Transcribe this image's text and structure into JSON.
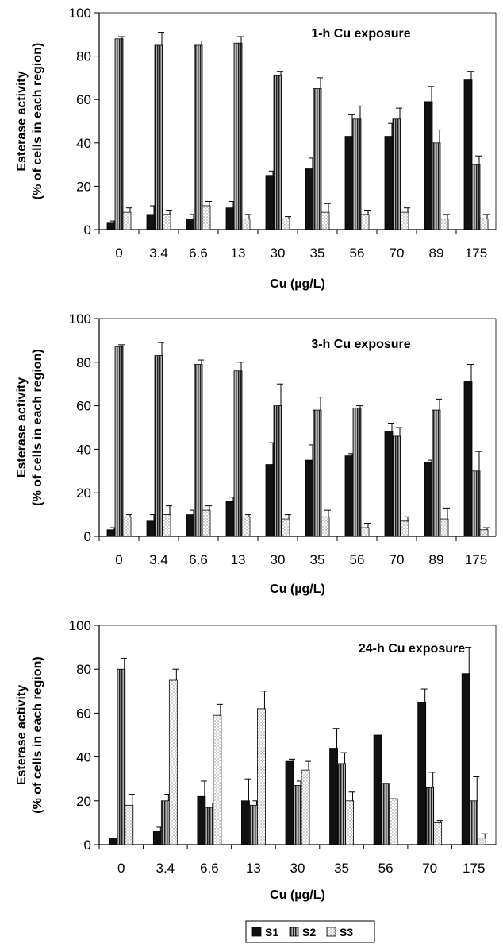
{
  "chart_data": [
    {
      "type": "bar",
      "title": "1-h Cu exposure",
      "xlabel": "Cu (µg/L)",
      "ylabel": [
        "Esterase activity",
        "(% of cells in each region)"
      ],
      "ylim": [
        0,
        100
      ],
      "yticks": [
        0,
        20,
        40,
        60,
        80,
        100
      ],
      "categories": [
        "0",
        "3.4",
        "6.6",
        "13",
        "30",
        "35",
        "56",
        "70",
        "89",
        "175"
      ],
      "series": [
        {
          "name": "S1",
          "values": [
            3,
            7,
            5,
            10,
            25,
            28,
            43,
            43,
            59,
            69
          ],
          "errors": [
            1,
            4,
            2,
            3,
            2,
            5,
            10,
            6,
            7,
            4
          ]
        },
        {
          "name": "S2",
          "values": [
            88,
            85,
            85,
            86,
            71,
            65,
            51,
            51,
            40,
            30
          ],
          "errors": [
            1,
            6,
            2,
            3,
            2,
            5,
            6,
            5,
            6,
            4
          ]
        },
        {
          "name": "S3",
          "values": [
            8,
            7,
            11,
            5,
            5,
            8,
            7,
            8,
            5,
            5
          ],
          "errors": [
            2,
            2,
            2,
            2,
            1,
            4,
            2,
            2,
            2,
            2
          ]
        }
      ]
    },
    {
      "type": "bar",
      "title": "3-h Cu exposure",
      "xlabel": "Cu (µg/L)",
      "ylabel": [
        "Esterase activity",
        "(% of cells in each region)"
      ],
      "ylim": [
        0,
        100
      ],
      "yticks": [
        0,
        20,
        40,
        60,
        80,
        100
      ],
      "categories": [
        "0",
        "3.4",
        "6.6",
        "13",
        "30",
        "35",
        "56",
        "70",
        "89",
        "175"
      ],
      "series": [
        {
          "name": "S1",
          "values": [
            3,
            7,
            10,
            16,
            33,
            35,
            37,
            48,
            34,
            71
          ],
          "errors": [
            1,
            3,
            2,
            2,
            10,
            7,
            1,
            4,
            1,
            8
          ]
        },
        {
          "name": "S2",
          "values": [
            87,
            83,
            79,
            76,
            60,
            58,
            59,
            46,
            58,
            30
          ],
          "errors": [
            1,
            6,
            2,
            4,
            10,
            6,
            1,
            4,
            5,
            9
          ]
        },
        {
          "name": "S3",
          "values": [
            9,
            10,
            12,
            9,
            8,
            9,
            4,
            7,
            8,
            3
          ],
          "errors": [
            1,
            4,
            2,
            1,
            2,
            3,
            2,
            2,
            5,
            1
          ]
        }
      ]
    },
    {
      "type": "bar",
      "title": "24-h Cu exposure",
      "xlabel": "Cu (µg/L)",
      "ylabel": [
        "Esterase activity",
        "(% of cells in each region)"
      ],
      "ylim": [
        0,
        100
      ],
      "yticks": [
        0,
        20,
        40,
        60,
        80,
        100
      ],
      "categories": [
        "0",
        "3.4",
        "6.6",
        "13",
        "30",
        "35",
        "56",
        "70",
        "175"
      ],
      "series": [
        {
          "name": "S1",
          "values": [
            3,
            6,
            22,
            20,
            38,
            44,
            50,
            65,
            78
          ],
          "errors": [
            0,
            2,
            7,
            10,
            1,
            9,
            0,
            6,
            12
          ]
        },
        {
          "name": "S2",
          "values": [
            80,
            20,
            17,
            18,
            27,
            37,
            28,
            26,
            20
          ],
          "errors": [
            5,
            3,
            2,
            2,
            2,
            5,
            0,
            7,
            11
          ]
        },
        {
          "name": "S3",
          "values": [
            18,
            75,
            59,
            62,
            34,
            20,
            21,
            10,
            3
          ],
          "errors": [
            5,
            5,
            5,
            8,
            4,
            4,
            0,
            1,
            2
          ]
        }
      ]
    }
  ],
  "legend": {
    "items": [
      {
        "label": "S1",
        "pattern": "solid-dark"
      },
      {
        "label": "S2",
        "pattern": "vertical-stripes"
      },
      {
        "label": "S3",
        "pattern": "dots"
      }
    ]
  }
}
